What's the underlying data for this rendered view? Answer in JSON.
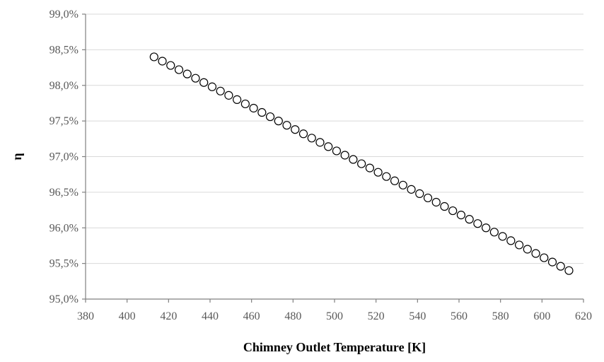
{
  "chart_data": {
    "type": "scatter",
    "title": "",
    "xlabel": "Chimney Outlet Temperature [K]",
    "ylabel": "η",
    "xlim": [
      380,
      620
    ],
    "ylim": [
      0.95,
      0.99
    ],
    "x_ticks": [
      380,
      400,
      420,
      440,
      460,
      480,
      500,
      520,
      540,
      560,
      580,
      600,
      620
    ],
    "y_ticks": [
      0.95,
      0.955,
      0.96,
      0.965,
      0.97,
      0.975,
      0.98,
      0.985,
      0.99
    ],
    "y_tick_labels": [
      "95,0%",
      "95,5%",
      "96,0%",
      "96,5%",
      "97,0%",
      "97,5%",
      "98,0%",
      "98,5%",
      "99,0%"
    ],
    "grid": "horizontal",
    "legend": "none",
    "marker": "open-circle",
    "series": [
      {
        "x": [
          413,
          417,
          421,
          425,
          429,
          433,
          437,
          441,
          445,
          449,
          453,
          457,
          461,
          465,
          469,
          473,
          477,
          481,
          485,
          489,
          493,
          497,
          501,
          505,
          509,
          513,
          517,
          521,
          525,
          529,
          533,
          537,
          541,
          545,
          549,
          553,
          557,
          561,
          565,
          569,
          573,
          577,
          581,
          585,
          589,
          593,
          597,
          601,
          605,
          609,
          613
        ],
        "y": [
          0.984,
          0.9834,
          0.9828,
          0.9822,
          0.9816,
          0.981,
          0.9804,
          0.9798,
          0.9792,
          0.9786,
          0.978,
          0.9774,
          0.9768,
          0.9762,
          0.9756,
          0.975,
          0.9744,
          0.9738,
          0.9732,
          0.9726,
          0.972,
          0.9714,
          0.9708,
          0.9702,
          0.9696,
          0.969,
          0.9684,
          0.9678,
          0.9672,
          0.9666,
          0.966,
          0.9654,
          0.9648,
          0.9642,
          0.9636,
          0.963,
          0.9624,
          0.9618,
          0.9612,
          0.9606,
          0.96,
          0.9594,
          0.9588,
          0.9582,
          0.9576,
          0.957,
          0.9564,
          0.9558,
          0.9552,
          0.9546,
          0.954
        ]
      }
    ]
  }
}
